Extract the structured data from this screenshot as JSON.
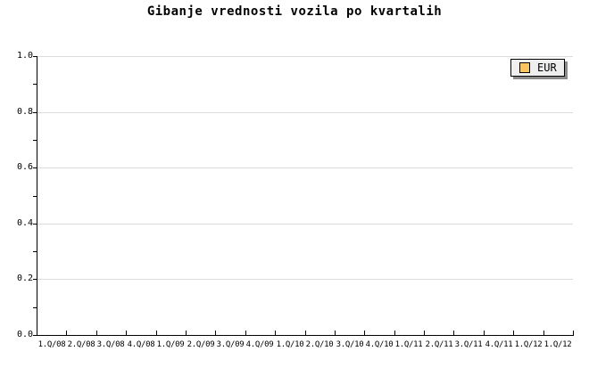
{
  "title": "Gibanje vrednosti vozila po kvartalih",
  "legend": {
    "label": "EUR",
    "swatch_color": "#FBC55D"
  },
  "y_axis": {
    "tick_labels": [
      "0.0",
      "0.2",
      "0.4",
      "0.6",
      "0.8",
      "1.0"
    ]
  },
  "colors": {
    "background": "#ffffff",
    "axis": "#000000",
    "gridline": "#dcdcdc",
    "legend_background": "#efefef",
    "legend_border": "#000000",
    "legend_shadow": "#8c8c8c",
    "series_eur_swatch": "#FBC55D",
    "text": "#000000"
  },
  "chart_data": {
    "type": "line",
    "title": "Gibanje vrednosti vozila po kvartalih",
    "categories": [
      "1.Q/08",
      "2.Q/08",
      "3.Q/08",
      "4.Q/08",
      "1.Q/09",
      "2.Q/09",
      "3.Q/09",
      "4.Q/09",
      "1.Q/10",
      "2.Q/10",
      "3.Q/10",
      "4.Q/10",
      "1.Q/11",
      "2.Q/11",
      "3.Q/11",
      "4.Q/11",
      "1.Q/12",
      "1.Q/12"
    ],
    "series": [
      {
        "name": "EUR",
        "values": []
      }
    ],
    "xlabel": "",
    "ylabel": "",
    "ylim": [
      0.0,
      1.0
    ],
    "y_major_ticks": [
      0.0,
      0.2,
      0.4,
      0.6,
      0.8,
      1.0
    ],
    "y_minor_tick_interval": 0.1,
    "grid": "horizontal gridlines at major y ticks only",
    "legend_position": "top-right",
    "plot_area_empty": true
  }
}
